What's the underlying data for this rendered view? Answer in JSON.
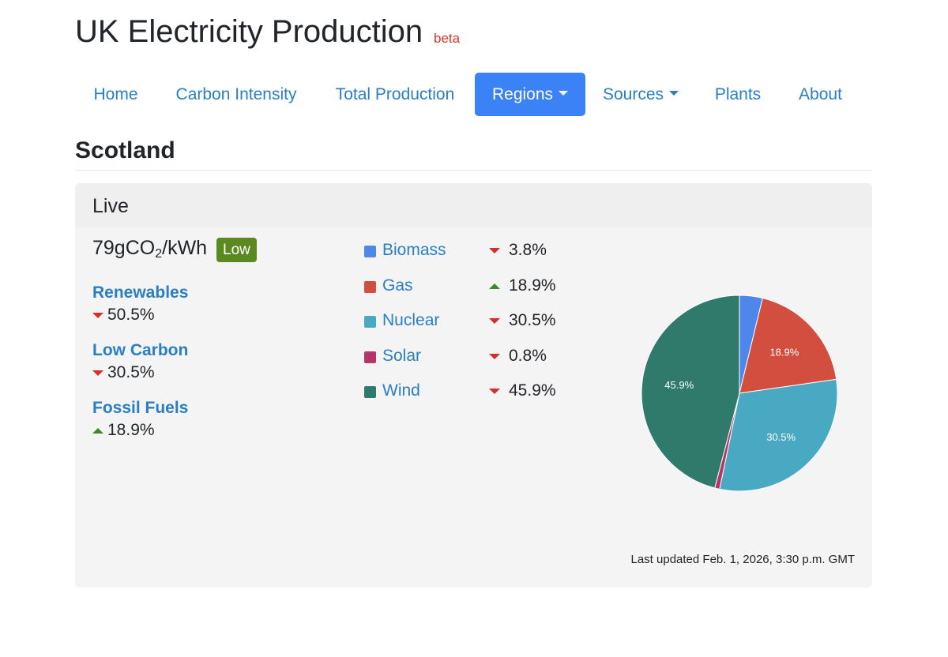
{
  "header": {
    "title": "UK Electricity Production",
    "badge": "beta"
  },
  "nav": [
    {
      "label": "Home",
      "active": false,
      "dropdown": false
    },
    {
      "label": "Carbon Intensity",
      "active": false,
      "dropdown": false
    },
    {
      "label": "Total Production",
      "active": false,
      "dropdown": false
    },
    {
      "label": "Regions",
      "active": true,
      "dropdown": true
    },
    {
      "label": "Sources",
      "active": false,
      "dropdown": true
    },
    {
      "label": "Plants",
      "active": false,
      "dropdown": false
    },
    {
      "label": "About",
      "active": false,
      "dropdown": false
    }
  ],
  "region": {
    "name": "Scotland"
  },
  "live": {
    "title": "Live",
    "intensity": {
      "value": "79gCO",
      "subscript": "2",
      "unit": "/kWh",
      "level": "Low",
      "level_color": "#5a8a1f"
    },
    "categories": [
      {
        "name": "Renewables",
        "trend": "down",
        "value": "50.5%"
      },
      {
        "name": "Low Carbon",
        "trend": "down",
        "value": "30.5%"
      },
      {
        "name": "Fossil Fuels",
        "trend": "up",
        "value": "18.9%"
      }
    ],
    "last_updated": "Last updated Feb. 1, 2026, 3:30 p.m. GMT"
  },
  "chart_data": {
    "type": "pie",
    "categories": [
      "Biomass",
      "Gas",
      "Nuclear",
      "Solar",
      "Wind"
    ],
    "values": [
      3.8,
      18.9,
      30.5,
      0.8,
      45.9
    ],
    "labels": [
      "3.8%",
      "18.9%",
      "30.5%",
      "0.8%",
      "45.9%"
    ],
    "trends": [
      "down",
      "up",
      "down",
      "down",
      "down"
    ],
    "colors": [
      "#4f86ec",
      "#d24f3f",
      "#4aa9c2",
      "#b53469",
      "#2f7a6b"
    ],
    "slice_labels": [
      "",
      "18.9%",
      "30.5%",
      "",
      "45.9%"
    ],
    "legend_position": "left"
  }
}
